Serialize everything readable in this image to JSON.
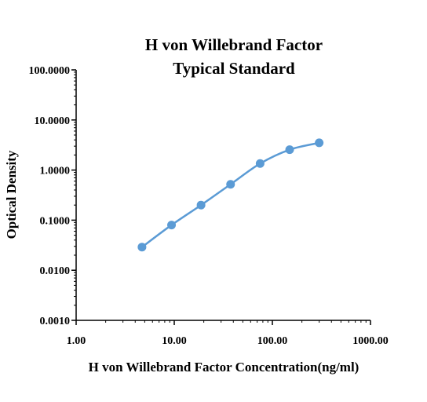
{
  "colors": {
    "series": "#5b9bd5",
    "axis": "#000000",
    "background": "#ffffff"
  },
  "chart_data": {
    "type": "scatter",
    "title_lines": [
      "H von Willebrand Factor",
      "Typical Standard"
    ],
    "xlabel": "H von Willebrand Factor Concentration(ng/ml)",
    "ylabel": "Optical Density",
    "x_scale": "log",
    "y_scale": "log",
    "xlim": [
      1,
      1000
    ],
    "ylim": [
      0.001,
      100
    ],
    "x_ticks": [
      {
        "value": 1,
        "label": "1.00"
      },
      {
        "value": 10,
        "label": "10.00"
      },
      {
        "value": 100,
        "label": "100.00"
      },
      {
        "value": 1000,
        "label": "1000.00"
      }
    ],
    "y_ticks": [
      {
        "value": 0.001,
        "label": "0.0010"
      },
      {
        "value": 0.01,
        "label": "0.0100"
      },
      {
        "value": 0.1,
        "label": "0.1000"
      },
      {
        "value": 1,
        "label": "1.0000"
      },
      {
        "value": 10,
        "label": "10.0000"
      },
      {
        "value": 100,
        "label": "100.0000"
      }
    ],
    "grid": false,
    "legend": "none",
    "series": [
      {
        "x": [
          4.69,
          9.38,
          18.75,
          37.5,
          75,
          150,
          300
        ],
        "y": [
          0.029,
          0.08,
          0.2,
          0.52,
          1.35,
          2.55,
          3.5
        ]
      }
    ]
  }
}
